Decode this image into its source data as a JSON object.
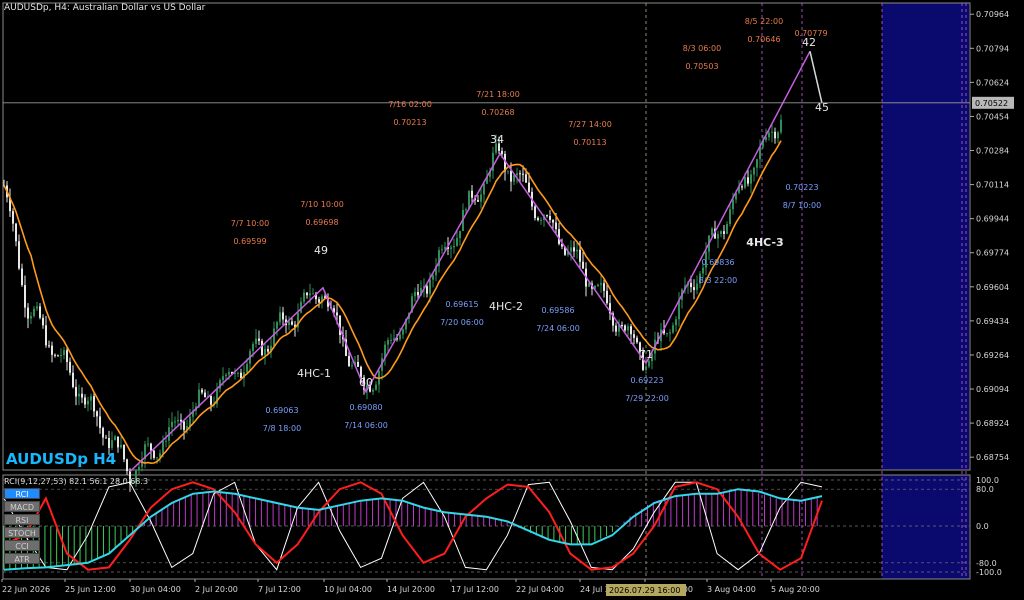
{
  "header": {
    "title": "AUDUSDp, H4:  Australian Dollar vs US Dollar"
  },
  "symbol_label": "AUDUSDp H4",
  "colors": {
    "background": "#000000",
    "bull": "#2f8f57",
    "bear": "#e8e8e8",
    "ma": "#ff9a1a",
    "zigzag": "#c45fe0",
    "label_red": "#e87a4c",
    "label_blue": "#7a9fff",
    "rci_fast": "#ffffff",
    "rci_mid": "#ff1e1e",
    "rci_slow": "#30d8e8",
    "future_zone": "#0a0a6e",
    "hist_up": "#3ccf5c",
    "hist_down": "#c03ac8"
  },
  "indicator": {
    "header": "RCI(9,12,27,53) 82.1 56.1 28.0 68.3",
    "buttons": [
      "RCI",
      "MACD",
      "RSI",
      "STOCH",
      "CCI",
      "ATR"
    ],
    "active": "RCI",
    "axis_labels": [
      "100.0",
      "80.0",
      "0.0",
      "-80.0",
      "-100.0"
    ]
  },
  "chart_data": {
    "type": "line",
    "title": "AUDUSDp, H4:  Australian Dollar vs US Dollar",
    "y_ticks": [
      "0.70964",
      "0.70794",
      "0.70624",
      "0.70454",
      "0.70284",
      "0.70114",
      "0.69944",
      "0.69774",
      "0.69604",
      "0.69434",
      "0.69264",
      "0.69094",
      "0.68924",
      "0.68754"
    ],
    "ylim": [
      0.6869,
      0.7102
    ],
    "x_ticks": [
      "22 Jun 2026",
      "25 Jun 12:00",
      "30 Jun 04:00",
      "2 Jul 20:00",
      "7 Jul 12:00",
      "10 Jul 04:00",
      "14 Jul 20:00",
      "17 Jul 12:00",
      "22 Jul 04:00",
      "24 Jul 20:00",
      "29 Jul 12:00",
      "3 Aug 04:00",
      "5 Aug 20:00"
    ],
    "current_price": "0.70522",
    "crosshair_time": "2026.07.29 16:00",
    "zigzag": [
      {
        "time": "6/30",
        "price": 0.68682
      },
      {
        "time": "7/9",
        "price": 0.69599
      },
      {
        "time": "7/14 06:00",
        "price": 0.6908
      },
      {
        "time": "7/21 18:00",
        "price": 0.70268
      },
      {
        "time": "7/29 22:00",
        "price": 0.69223
      },
      {
        "time": "8/7",
        "price": 0.70779
      }
    ],
    "bar_counts": [
      "49",
      "60",
      "34",
      "71",
      "42",
      "45"
    ],
    "pattern_labels": [
      "4HC-1",
      "4HC-2",
      "4HC-3"
    ],
    "high_labels": [
      {
        "time": "7/7 10:00",
        "price": "0.69599"
      },
      {
        "time": "7/10 10:00",
        "price": "0.69698"
      },
      {
        "time": "7/16 02:00",
        "price": "0.70213"
      },
      {
        "time": "7/21 18:00",
        "price": "0.70268"
      },
      {
        "time": "7/27 14:00",
        "price": "0.70113"
      },
      {
        "time": "8/3 06:00",
        "price": "0.70503"
      },
      {
        "time": "8/5 22:00",
        "price": "0.70646"
      },
      {
        "time": "",
        "price": "0.70779"
      }
    ],
    "low_labels": [
      {
        "time": "7/8 18:00",
        "price": "0.69063"
      },
      {
        "time": "7/14 06:00",
        "price": "0.69080"
      },
      {
        "time": "7/20 06:00",
        "price": "0.69615"
      },
      {
        "time": "7/24 06:00",
        "price": "0.69586"
      },
      {
        "time": "7/29 22:00",
        "price": "0.69223"
      },
      {
        "time": "8/3 22:00",
        "price": "0.69836"
      },
      {
        "time": "8/7 10:00",
        "price": "0.70223"
      }
    ],
    "rci_series": [
      {
        "name": "RCI 9",
        "values": [
          60,
          -20,
          -90,
          -95,
          -20,
          85,
          95,
          10,
          -90,
          -60,
          70,
          95,
          -40,
          -95,
          40,
          95,
          -10,
          -90,
          -70,
          60,
          95,
          20,
          -90,
          -95,
          -20,
          90,
          95,
          10,
          -90,
          -95,
          -50,
          30,
          95,
          95,
          -60,
          -95,
          -60,
          40,
          95,
          85
        ]
      },
      {
        "name": "RCI 12",
        "values": [
          -40,
          -20,
          60,
          -60,
          -95,
          -90,
          -30,
          40,
          80,
          95,
          80,
          30,
          -40,
          -80,
          -40,
          30,
          80,
          95,
          70,
          -20,
          -80,
          -60,
          20,
          60,
          90,
          85,
          30,
          -60,
          -95,
          -90,
          -60,
          0,
          85,
          95,
          80,
          20,
          -60,
          -95,
          -70,
          55
        ]
      },
      {
        "name": "RCI 27",
        "values": [
          -95,
          -92,
          -90,
          -85,
          -80,
          -60,
          -20,
          20,
          50,
          70,
          75,
          70,
          60,
          50,
          40,
          35,
          45,
          55,
          60,
          55,
          40,
          30,
          25,
          20,
          10,
          -10,
          -30,
          -40,
          -40,
          -20,
          20,
          50,
          65,
          70,
          70,
          80,
          75,
          60,
          55,
          65
        ]
      }
    ]
  }
}
